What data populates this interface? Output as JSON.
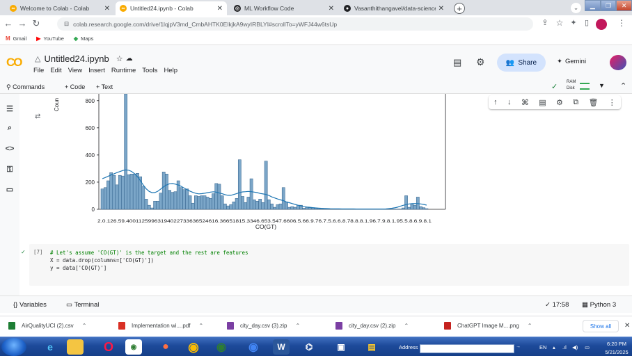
{
  "browser": {
    "tabs": [
      {
        "title": "Welcome to Colab - Colab",
        "active": false,
        "icon_color": "#f9ab00"
      },
      {
        "title": "Untitled24.ipynb - Colab",
        "active": true,
        "icon_color": "#f9ab00"
      },
      {
        "title": "ML Workflow Code",
        "active": false,
        "icon_color": "#202124"
      },
      {
        "title": "Vasanthithangavel/data-science",
        "active": false,
        "icon_color": "#202124"
      }
    ],
    "url": "colab.research.google.com/drive/1lqjpV3md_CmbAHTK0EIkjkA9wyIRBLYI#scrollTo=yWFJ44w6tsUp",
    "bookmarks": [
      {
        "label": "Gmail",
        "icon": "M",
        "color": "#ea4335"
      },
      {
        "label": "YouTube",
        "icon": "▶",
        "color": "#ff0000"
      },
      {
        "label": "Maps",
        "icon": "◆",
        "color": "#34a853"
      }
    ]
  },
  "colab": {
    "logo": "CO",
    "notebook_title": "Untitled24.ipynb",
    "menu": [
      "File",
      "Edit",
      "View",
      "Insert",
      "Runtime",
      "Tools",
      "Help"
    ],
    "share_label": "Share",
    "gemini_label": "Gemini",
    "toolbar": {
      "commands": "Commands",
      "add_code": "+ Code",
      "add_text": "+ Text",
      "ram": "RAM",
      "disk": "Disk"
    }
  },
  "chart_data": {
    "type": "bar",
    "title": "",
    "xlabel": "CO(GT)",
    "ylabel": "Coun",
    "ylim": [
      0,
      850
    ],
    "yticks": [
      0,
      200,
      400,
      600,
      800
    ],
    "x_tick_text": "2.0.126.59.40011259963194022733636524616.36651815.3346.653.547.6606.5.66.9.76.7.5.6.6.8.78.8.8.1.96.7.9.8.1.95.5.8.6.9.8.1",
    "values": [
      150,
      160,
      210,
      270,
      250,
      180,
      250,
      245,
      850,
      255,
      260,
      260,
      265,
      240,
      170,
      75,
      30,
      10,
      60,
      60,
      120,
      275,
      260,
      140,
      125,
      130,
      210,
      160,
      145,
      150,
      100,
      45,
      100,
      95,
      100,
      100,
      90,
      80,
      115,
      190,
      185,
      100,
      40,
      25,
      35,
      55,
      80,
      365,
      95,
      50,
      90,
      225,
      70,
      60,
      75,
      50,
      355,
      70,
      40,
      15,
      35,
      40,
      160,
      55,
      15,
      20,
      15,
      30,
      30,
      8,
      15,
      12,
      10,
      8,
      6,
      5,
      4,
      4,
      3,
      3,
      3,
      2,
      2,
      2,
      2,
      2,
      2,
      2,
      2,
      2,
      2,
      2,
      2,
      2,
      2,
      2,
      2,
      2,
      2,
      2,
      2,
      2,
      2,
      10,
      100,
      15,
      40,
      30,
      90,
      20,
      12,
      5
    ]
  },
  "cell": {
    "exec_count": "[7]",
    "code_lines": [
      "# Let's assume 'CO(GT)' is the target and the rest are features",
      "X = data.drop(columns=['CO(GT)'])",
      "y = data['CO(GT)']"
    ]
  },
  "status": {
    "variables": "Variables",
    "terminal": "Terminal",
    "time": "✓ 17:58",
    "kernel": "Python 3"
  },
  "downloads": {
    "items": [
      {
        "name": "AirQualityUCI (2).csv",
        "color": "#1e7e34"
      },
      {
        "name": "Implementation wi....pdf",
        "color": "#d93025"
      },
      {
        "name": "city_day.csv (3).zip",
        "color": "#7b3fa3"
      },
      {
        "name": "city_day.csv (2).zip",
        "color": "#7b3fa3"
      },
      {
        "name": "ChatGPT Image M....png",
        "color": "#c5221f"
      }
    ],
    "show_all": "Show all"
  },
  "taskbar": {
    "address_label": "Address",
    "lang": "EN",
    "time": "6:20 PM",
    "date": "5/21/2025"
  }
}
